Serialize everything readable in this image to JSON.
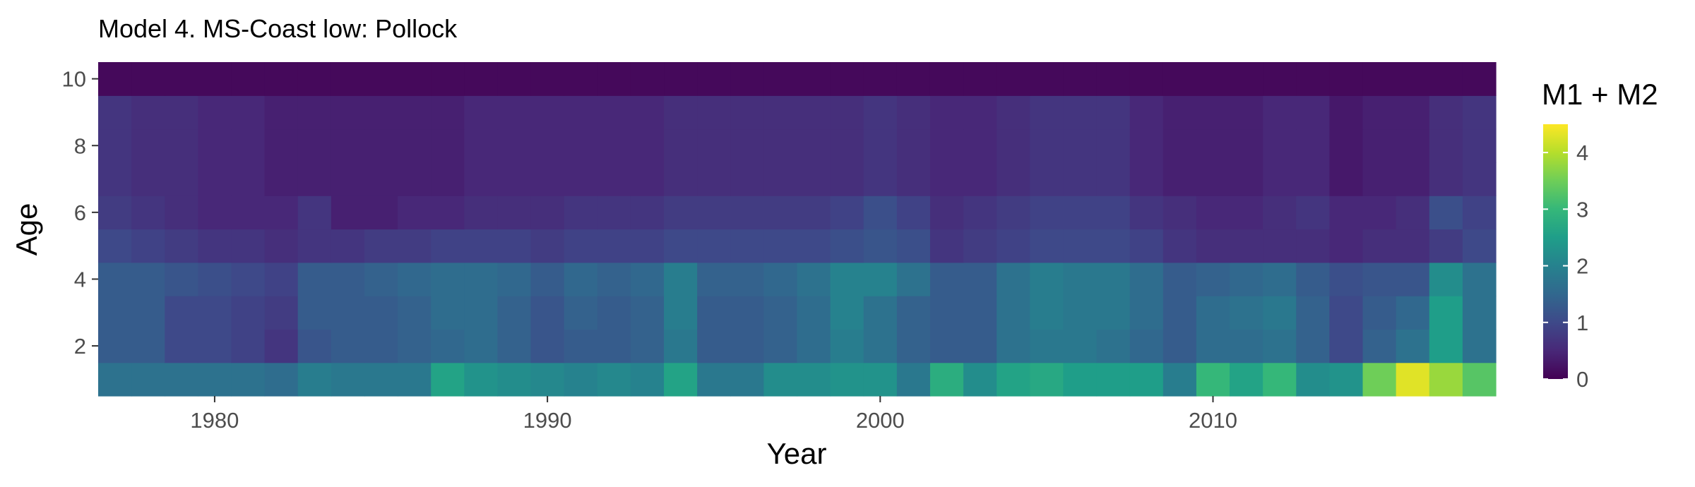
{
  "chart_data": {
    "type": "heatmap",
    "title": "Model 4. MS-Coast low: Pollock",
    "xlabel": "Year",
    "ylabel": "Age",
    "legend_title": "M1 + M2",
    "x_ticks": [
      1980,
      1990,
      2000,
      2010
    ],
    "y_ticks": [
      2,
      4,
      6,
      8,
      10
    ],
    "legend_ticks": [
      0,
      1,
      2,
      3,
      4
    ],
    "xlim": [
      1976.5,
      2018.5
    ],
    "ylim": [
      0.5,
      10.5
    ],
    "color_range": [
      0,
      4.5
    ],
    "colormap": "viridis",
    "colormap_stops": [
      "#440154",
      "#482878",
      "#3e4989",
      "#31688e",
      "#26828e",
      "#1f9e89",
      "#35b779",
      "#6ece58",
      "#b5de2b",
      "#fde725"
    ],
    "legend_position": "right",
    "grid": false,
    "years": [
      1977,
      1978,
      1979,
      1980,
      1981,
      1982,
      1983,
      1984,
      1985,
      1986,
      1987,
      1988,
      1989,
      1990,
      1991,
      1992,
      1993,
      1994,
      1995,
      1996,
      1997,
      1998,
      1999,
      2000,
      2001,
      2002,
      2003,
      2004,
      2005,
      2006,
      2007,
      2008,
      2009,
      2010,
      2011,
      2012,
      2013,
      2014,
      2015,
      2016,
      2017,
      2018
    ],
    "ages": [
      1,
      2,
      3,
      4,
      5,
      6,
      7,
      8,
      9,
      10
    ],
    "values": {
      "1": [
        1.7,
        1.7,
        1.7,
        1.7,
        1.7,
        1.6,
        1.9,
        1.8,
        1.8,
        1.8,
        2.6,
        2.3,
        2.2,
        2.1,
        2.0,
        2.1,
        2.0,
        2.6,
        1.8,
        1.8,
        2.2,
        2.2,
        2.3,
        2.3,
        1.8,
        2.8,
        2.2,
        2.6,
        2.7,
        2.5,
        2.5,
        2.5,
        1.9,
        3.0,
        2.6,
        3.0,
        2.2,
        2.3,
        3.5,
        4.3,
        3.8,
        3.3
      ],
      "2": [
        1.3,
        1.3,
        1.0,
        1.0,
        0.9,
        0.7,
        1.2,
        1.3,
        1.3,
        1.4,
        1.5,
        1.6,
        1.4,
        1.2,
        1.3,
        1.3,
        1.4,
        1.8,
        1.3,
        1.3,
        1.4,
        1.6,
        1.9,
        1.7,
        1.4,
        1.3,
        1.3,
        1.7,
        1.8,
        1.8,
        1.7,
        1.5,
        1.3,
        1.6,
        1.6,
        1.7,
        1.4,
        1.0,
        1.4,
        1.7,
        2.5,
        1.7
      ],
      "3": [
        1.3,
        1.3,
        1.0,
        1.0,
        0.9,
        0.8,
        1.3,
        1.3,
        1.3,
        1.4,
        1.6,
        1.6,
        1.4,
        1.2,
        1.4,
        1.3,
        1.4,
        1.9,
        1.3,
        1.3,
        1.4,
        1.6,
        2.0,
        1.7,
        1.4,
        1.3,
        1.3,
        1.7,
        1.9,
        1.8,
        1.8,
        1.6,
        1.3,
        1.6,
        1.7,
        1.8,
        1.4,
        1.0,
        1.3,
        1.5,
        2.5,
        1.7
      ],
      "4": [
        1.3,
        1.3,
        1.2,
        1.1,
        1.0,
        0.9,
        1.3,
        1.3,
        1.4,
        1.5,
        1.6,
        1.6,
        1.5,
        1.3,
        1.5,
        1.4,
        1.5,
        1.9,
        1.4,
        1.4,
        1.5,
        1.7,
        2.0,
        2.0,
        1.7,
        1.3,
        1.3,
        1.7,
        1.9,
        1.8,
        1.8,
        1.6,
        1.3,
        1.4,
        1.5,
        1.6,
        1.3,
        1.1,
        1.2,
        1.2,
        2.2,
        1.7
      ],
      "5": [
        1.0,
        0.9,
        0.8,
        0.7,
        0.7,
        0.6,
        0.7,
        0.7,
        0.8,
        0.8,
        0.9,
        0.9,
        0.9,
        0.8,
        0.9,
        0.9,
        0.9,
        1.0,
        1.0,
        1.0,
        1.0,
        1.0,
        1.1,
        1.2,
        1.1,
        0.7,
        0.8,
        0.9,
        1.0,
        1.0,
        1.0,
        0.9,
        0.7,
        0.6,
        0.6,
        0.6,
        0.6,
        0.5,
        0.6,
        0.6,
        0.8,
        1.0
      ],
      "6": [
        0.8,
        0.7,
        0.6,
        0.5,
        0.5,
        0.5,
        0.7,
        0.4,
        0.4,
        0.5,
        0.5,
        0.6,
        0.6,
        0.6,
        0.7,
        0.7,
        0.7,
        0.8,
        0.8,
        0.8,
        0.8,
        0.8,
        0.9,
        1.1,
        0.9,
        0.6,
        0.7,
        0.8,
        0.9,
        0.9,
        0.9,
        0.7,
        0.6,
        0.5,
        0.5,
        0.6,
        0.7,
        0.5,
        0.5,
        0.6,
        1.1,
        0.9
      ],
      "7": [
        0.7,
        0.6,
        0.6,
        0.5,
        0.5,
        0.4,
        0.4,
        0.4,
        0.4,
        0.4,
        0.4,
        0.5,
        0.5,
        0.5,
        0.5,
        0.5,
        0.5,
        0.6,
        0.6,
        0.6,
        0.6,
        0.6,
        0.6,
        0.7,
        0.6,
        0.5,
        0.5,
        0.6,
        0.7,
        0.7,
        0.7,
        0.5,
        0.4,
        0.4,
        0.4,
        0.5,
        0.5,
        0.3,
        0.4,
        0.4,
        0.6,
        0.7
      ],
      "8": [
        0.7,
        0.6,
        0.6,
        0.5,
        0.5,
        0.4,
        0.4,
        0.4,
        0.4,
        0.4,
        0.4,
        0.5,
        0.5,
        0.5,
        0.5,
        0.5,
        0.5,
        0.6,
        0.6,
        0.6,
        0.6,
        0.6,
        0.6,
        0.7,
        0.6,
        0.5,
        0.5,
        0.6,
        0.7,
        0.7,
        0.7,
        0.5,
        0.4,
        0.4,
        0.4,
        0.5,
        0.5,
        0.3,
        0.4,
        0.4,
        0.6,
        0.7
      ],
      "9": [
        0.7,
        0.6,
        0.6,
        0.5,
        0.5,
        0.4,
        0.4,
        0.4,
        0.4,
        0.4,
        0.4,
        0.5,
        0.5,
        0.5,
        0.5,
        0.5,
        0.5,
        0.6,
        0.6,
        0.6,
        0.6,
        0.6,
        0.6,
        0.7,
        0.6,
        0.5,
        0.5,
        0.6,
        0.7,
        0.7,
        0.7,
        0.5,
        0.4,
        0.4,
        0.4,
        0.5,
        0.5,
        0.3,
        0.4,
        0.4,
        0.6,
        0.7
      ],
      "10": [
        0.1,
        0.1,
        0.1,
        0.1,
        0.1,
        0.1,
        0.1,
        0.1,
        0.1,
        0.1,
        0.1,
        0.1,
        0.1,
        0.1,
        0.1,
        0.1,
        0.1,
        0.1,
        0.1,
        0.1,
        0.1,
        0.1,
        0.1,
        0.1,
        0.1,
        0.1,
        0.1,
        0.1,
        0.1,
        0.1,
        0.1,
        0.1,
        0.1,
        0.1,
        0.1,
        0.1,
        0.1,
        0.1,
        0.1,
        0.1,
        0.1,
        0.1
      ]
    }
  }
}
